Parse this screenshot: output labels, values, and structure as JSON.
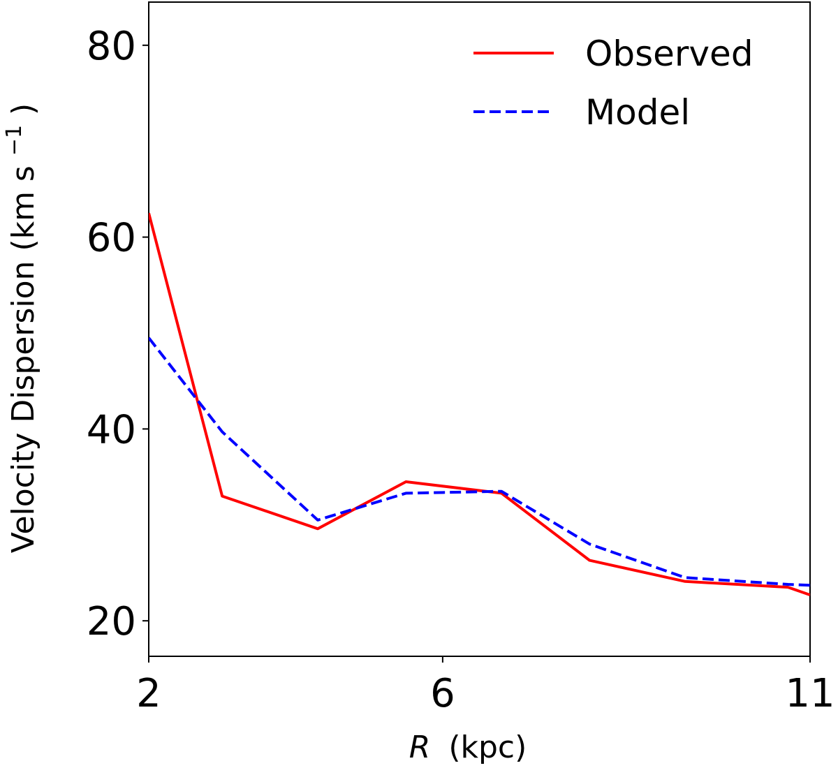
{
  "chart_data": {
    "type": "line",
    "xlabel": {
      "variable": "R",
      "unit": "(kpc)"
    },
    "ylabel": {
      "text": "Velocity Dispersion (km s",
      "superscript": "−1",
      "suffix": ")"
    },
    "xlim": [
      2,
      11
    ],
    "ylim": [
      16.3,
      84.5
    ],
    "xticks": [
      2,
      6,
      11
    ],
    "yticks": [
      20,
      40,
      60,
      80
    ],
    "grid": false,
    "legend": "top-right",
    "series": [
      {
        "name": "Observed",
        "color": "#ff0000",
        "dash": "solid",
        "x": [
          2.0,
          3.0,
          4.3,
          5.5,
          6.8,
          8.0,
          9.3,
          10.7,
          11.0
        ],
        "y": [
          62.5,
          33.0,
          29.6,
          34.5,
          33.3,
          26.3,
          24.1,
          23.5,
          22.7
        ]
      },
      {
        "name": "Model",
        "color": "#0000ff",
        "dash": "dashed",
        "x": [
          2.0,
          3.0,
          4.3,
          5.5,
          6.8,
          8.0,
          9.3,
          10.7,
          11.0
        ],
        "y": [
          49.5,
          39.7,
          30.5,
          33.3,
          33.5,
          28.0,
          24.5,
          23.8,
          23.7
        ]
      }
    ]
  }
}
